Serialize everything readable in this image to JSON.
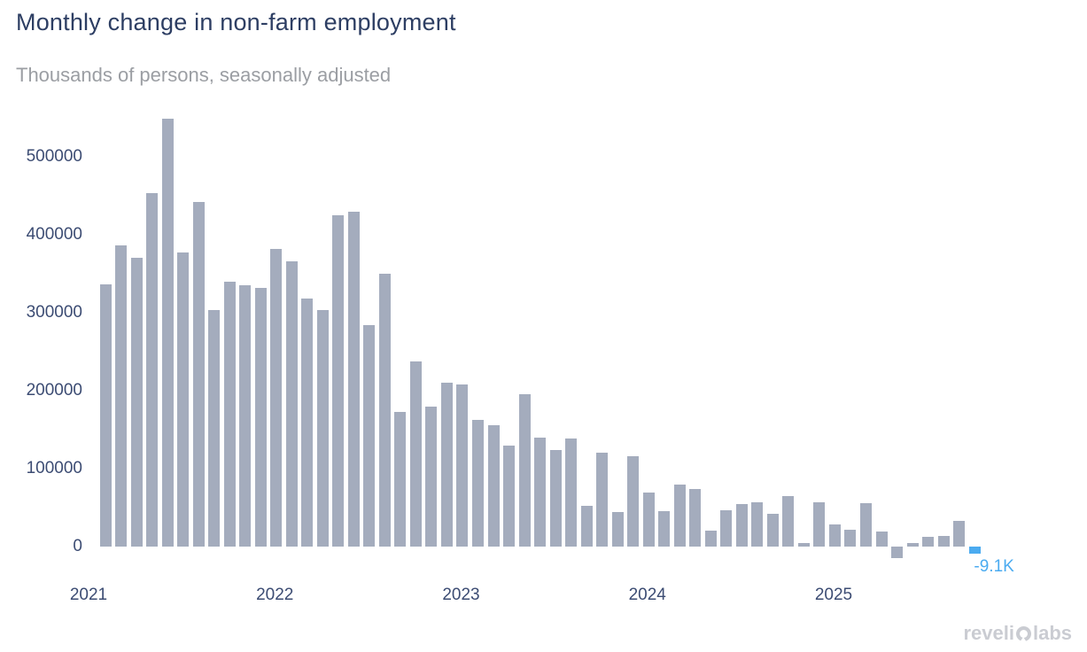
{
  "header": {
    "title": "Monthly change in non-farm employment",
    "subtitle": "Thousands of persons, seasonally adjusted"
  },
  "chart_data": {
    "type": "bar",
    "title": "Monthly change in non-farm employment",
    "subtitle": "Thousands of persons, seasonally adjusted",
    "xlabel": "",
    "ylabel": "",
    "grid": false,
    "legend": "none",
    "ylim": [
      -30000,
      560000
    ],
    "yticks": [
      0,
      100000,
      200000,
      300000,
      400000,
      500000
    ],
    "ytick_labels": [
      "0",
      "100000",
      "200000",
      "300000",
      "400000",
      "500000"
    ],
    "year_labels": [
      "2021",
      "2022",
      "2023",
      "2024",
      "2025"
    ],
    "categories": [
      "Jan 2021",
      "Feb 2021",
      "Mar 2021",
      "Apr 2021",
      "May 2021",
      "Jun 2021",
      "Jul 2021",
      "Aug 2021",
      "Sep 2021",
      "Oct 2021",
      "Nov 2021",
      "Dec 2021",
      "Jan 2022",
      "Feb 2022",
      "Mar 2022",
      "Apr 2022",
      "May 2022",
      "Jun 2022",
      "Jul 2022",
      "Aug 2022",
      "Sep 2022",
      "Oct 2022",
      "Nov 2022",
      "Dec 2022",
      "Jan 2023",
      "Feb 2023",
      "Mar 2023",
      "Apr 2023",
      "May 2023",
      "Jun 2023",
      "Jul 2023",
      "Aug 2023",
      "Sep 2023",
      "Oct 2023",
      "Nov 2023",
      "Dec 2023",
      "Jan 2024",
      "Feb 2024",
      "Mar 2024",
      "Apr 2024",
      "May 2024",
      "Jun 2024",
      "Jul 2024",
      "Aug 2024",
      "Sep 2024",
      "Oct 2024",
      "Nov 2024",
      "Dec 2024",
      "Jan 2025",
      "Feb 2025",
      "Mar 2025",
      "Apr 2025",
      "May 2025",
      "Jun 2025",
      "Jul 2025",
      "Aug 2025",
      "Sep 2025"
    ],
    "values": [
      336000,
      386000,
      370000,
      453000,
      549000,
      377000,
      442000,
      303000,
      340000,
      335000,
      332000,
      382000,
      366000,
      318000,
      303000,
      425000,
      430000,
      284000,
      350000,
      173000,
      237000,
      179000,
      210000,
      208000,
      162000,
      156000,
      130000,
      196000,
      140000,
      124000,
      139000,
      52000,
      121000,
      44000,
      116000,
      69000,
      46000,
      80000,
      74000,
      21000,
      47000,
      55000,
      57000,
      42000,
      65000,
      4000,
      57000,
      28000,
      22000,
      56000,
      19000,
      -15000,
      4000,
      13000,
      14000,
      33000,
      -9100
    ],
    "bar_color": "#a4acbd",
    "highlight": {
      "index": 56,
      "value": -9100,
      "label": "-9.1K",
      "color": "#4babf0"
    }
  },
  "watermark": {
    "left": "reveli",
    "o_icon": "revelio-o",
    "right": "labs"
  }
}
